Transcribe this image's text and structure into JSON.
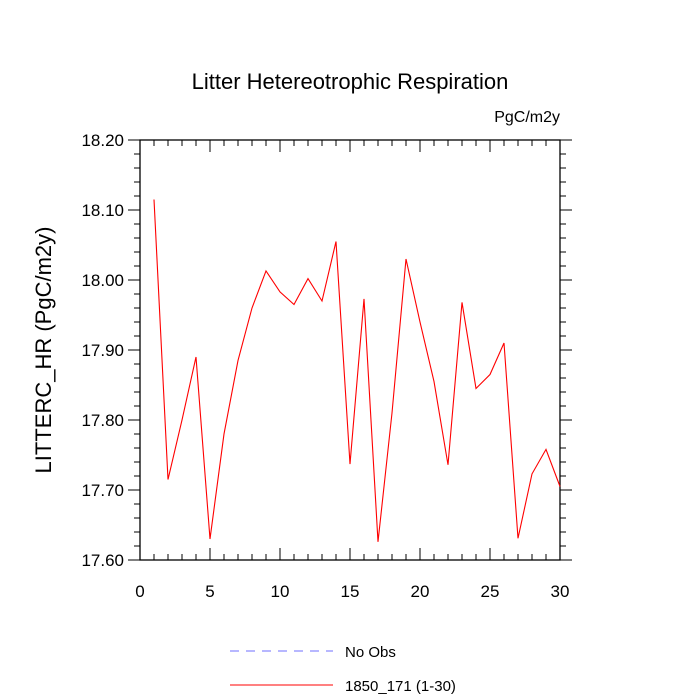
{
  "chart_data": {
    "type": "line",
    "title": "Litter Hetereotrophic Respiration",
    "units_label": "PgC/m2y",
    "ylabel": "LITTERC_HR  (PgC/m2y)",
    "xlabel": "",
    "xlim": [
      0,
      30
    ],
    "ylim": [
      17.6,
      18.2
    ],
    "x_ticks": [
      "0",
      "5",
      "10",
      "15",
      "20",
      "25",
      "30"
    ],
    "y_ticks": [
      "17.60",
      "17.70",
      "17.80",
      "17.90",
      "18.00",
      "18.10",
      "18.20"
    ],
    "grid": false,
    "legend_position": "bottom",
    "series": [
      {
        "name": "1850_171 (1-30)",
        "color": "#ff0000",
        "style": "solid",
        "x": [
          1,
          2,
          3,
          4,
          5,
          6,
          7,
          8,
          9,
          10,
          11,
          12,
          13,
          14,
          15,
          16,
          17,
          18,
          19,
          20,
          21,
          22,
          23,
          24,
          25,
          26,
          27,
          28,
          29,
          30
        ],
        "y": [
          18.115,
          17.715,
          17.8,
          17.89,
          17.63,
          17.78,
          17.885,
          17.96,
          18.013,
          17.983,
          17.965,
          18.002,
          17.97,
          18.055,
          17.737,
          17.973,
          17.626,
          17.81,
          18.03,
          17.94,
          17.855,
          17.736,
          17.968,
          17.845,
          17.865,
          17.91,
          17.631,
          17.723,
          17.758,
          17.705
        ]
      }
    ],
    "legend": [
      {
        "label": "No Obs",
        "color": "#6f6fff",
        "style": "dashed"
      },
      {
        "label": "1850_171 (1-30)",
        "color": "#ff0000",
        "style": "solid"
      }
    ]
  }
}
